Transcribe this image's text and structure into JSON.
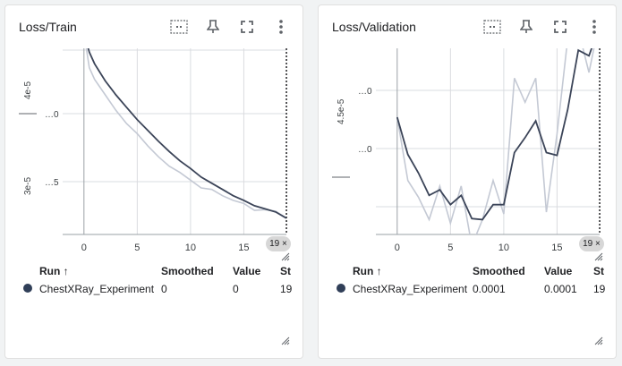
{
  "colors": {
    "series_smoothed": "#3b4458",
    "series_raw": "#c4c9d4",
    "grid": "#dadce0",
    "run_dot": "#303f58"
  },
  "toolbar_icons": [
    "fit-domain-icon",
    "pin-icon",
    "fullscreen-icon",
    "more-vert-icon"
  ],
  "cards": [
    {
      "title": "Loss/Train",
      "step_badge": "19",
      "y_labels": [
        "4e-5",
        "…0",
        "3e-5",
        "…5"
      ],
      "table": {
        "headers": {
          "run": "Run",
          "sort": "↑",
          "smoothed": "Smoothed",
          "value": "Value",
          "step": "St"
        },
        "rows": [
          {
            "run": "ChestXRay_Experiment",
            "smoothed": "0",
            "value": "0",
            "step": "19"
          }
        ]
      }
    },
    {
      "title": "Loss/Validation",
      "step_badge": "19",
      "y_labels": [
        "4.5e-5",
        "…0",
        "…0"
      ],
      "table": {
        "headers": {
          "run": "Run",
          "sort": "↑",
          "smoothed": "Smoothed",
          "value": "Value",
          "step": "St"
        },
        "rows": [
          {
            "run": "ChestXRay_Experiment",
            "smoothed": "0.0001",
            "value": "0.0001",
            "step": "19"
          }
        ]
      }
    }
  ],
  "chart_data": [
    {
      "type": "line",
      "title": "Loss/Train",
      "x_ticks": [
        0,
        5,
        10,
        15
      ],
      "xlim": [
        -2,
        19.5
      ],
      "ylim": [
        2.1,
        4.5
      ],
      "series": [
        {
          "name": "Smoothed",
          "x": [
            0,
            0.5,
            1,
            2,
            3,
            4,
            5,
            6,
            7,
            8,
            9,
            10,
            11,
            12,
            13,
            14,
            15,
            16,
            17,
            18,
            19
          ],
          "y": [
            4.7,
            4.45,
            4.3,
            4.08,
            3.9,
            3.74,
            3.58,
            3.44,
            3.3,
            3.17,
            3.05,
            2.95,
            2.84,
            2.76,
            2.68,
            2.6,
            2.54,
            2.47,
            2.43,
            2.39,
            2.31
          ]
        },
        {
          "name": "Value",
          "x": [
            0,
            0.5,
            1,
            2,
            3,
            4,
            5,
            6,
            7,
            8,
            9,
            10,
            11,
            12,
            13,
            14,
            15,
            16,
            17,
            18,
            19
          ],
          "y": [
            4.7,
            4.25,
            4.1,
            3.9,
            3.7,
            3.53,
            3.4,
            3.24,
            3.1,
            2.98,
            2.9,
            2.8,
            2.7,
            2.68,
            2.6,
            2.54,
            2.5,
            2.41,
            2.42,
            2.4,
            2.31
          ]
        }
      ]
    },
    {
      "type": "line",
      "title": "Loss/Validation",
      "x_ticks": [
        0,
        5,
        10,
        15
      ],
      "xlim": [
        -2,
        19.5
      ],
      "ylim": [
        0,
        10
      ],
      "series": [
        {
          "name": "Smoothed",
          "x": [
            0,
            1,
            2,
            3,
            4,
            5,
            6,
            7,
            8,
            9,
            10,
            11,
            12,
            13,
            14,
            15,
            16,
            17,
            18,
            19
          ],
          "y": [
            6.3,
            4.3,
            3.3,
            2.1,
            2.4,
            1.6,
            2.1,
            0.85,
            0.8,
            1.6,
            1.6,
            4.4,
            5.2,
            6.1,
            4.4,
            4.25,
            6.7,
            9.9,
            9.6,
            11.2
          ]
        },
        {
          "name": "Value",
          "x": [
            0,
            1,
            2,
            3,
            4,
            5,
            6,
            7,
            8,
            9,
            10,
            11,
            12,
            13,
            14,
            15,
            16,
            17,
            18,
            19
          ],
          "y": [
            6.3,
            2.9,
            2.0,
            0.8,
            2.6,
            0.6,
            2.6,
            -0.6,
            0.8,
            2.9,
            1.1,
            8.4,
            7.1,
            8.4,
            1.2,
            5.4,
            10.5,
            11.0,
            8.7,
            11.5
          ]
        }
      ]
    }
  ]
}
